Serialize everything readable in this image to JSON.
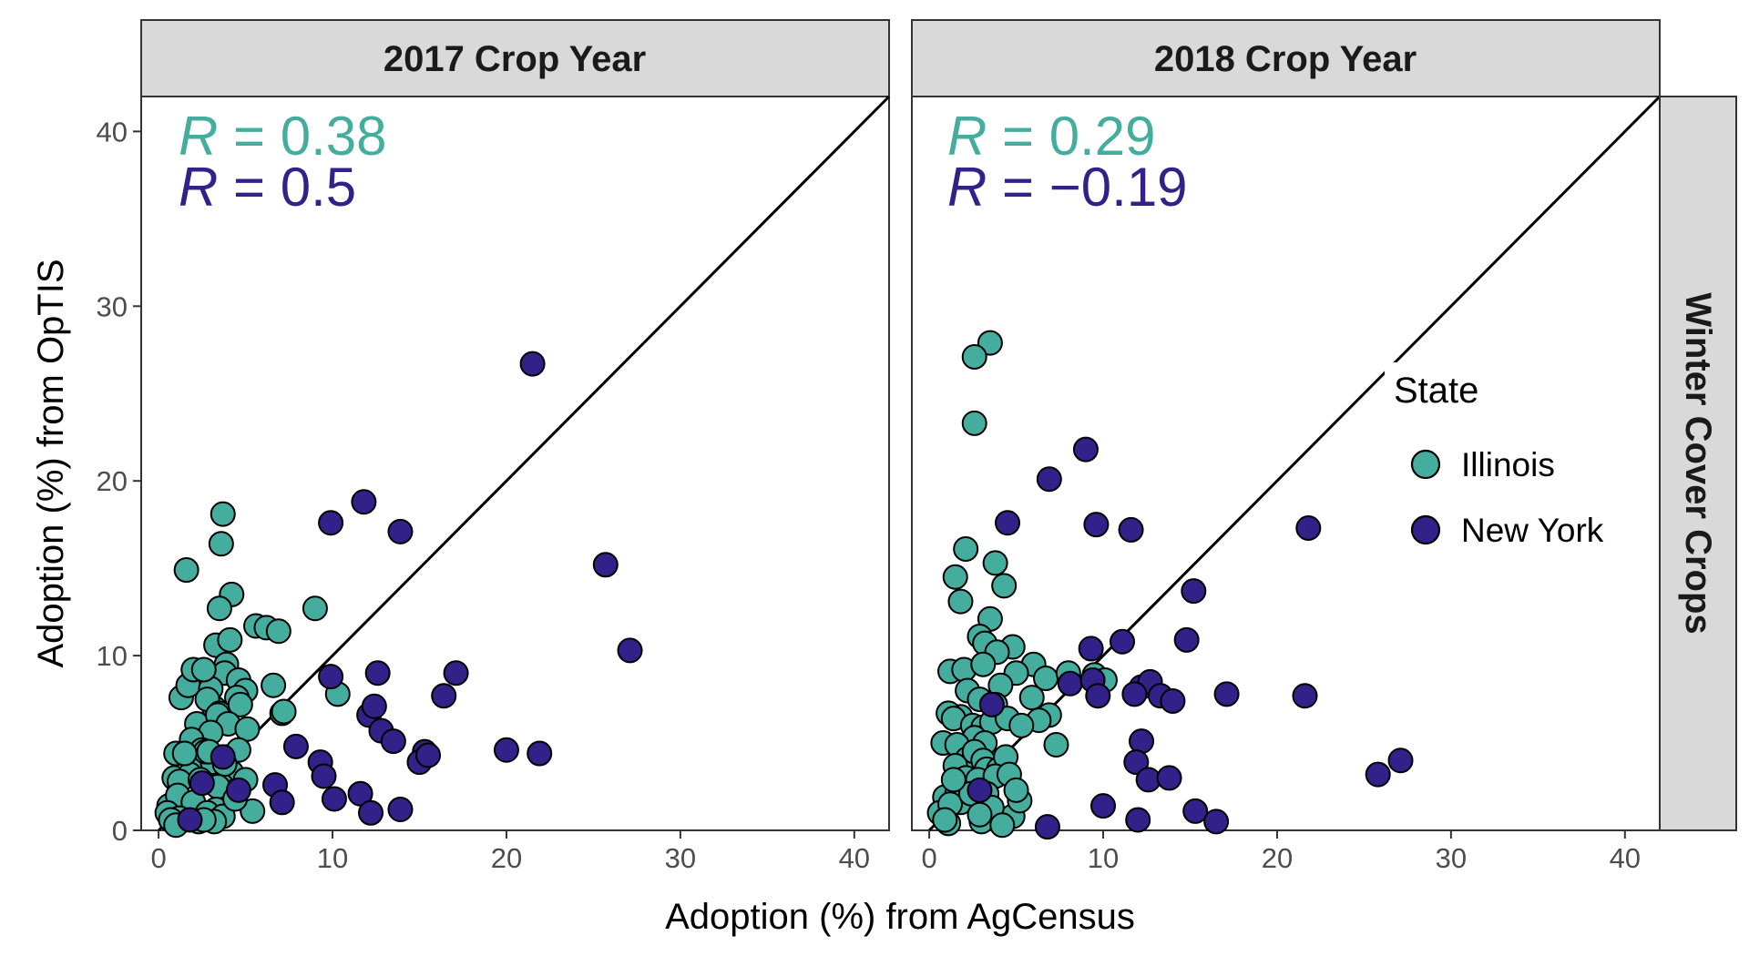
{
  "chart_data": {
    "type": "scatter",
    "xlabel": "Adoption (%) from AgCensus",
    "ylabel": "Adoption (%) from OpTIS",
    "xlim": [
      -1,
      42
    ],
    "ylim": [
      0,
      42
    ],
    "x_ticks": [
      0,
      10,
      20,
      30,
      40
    ],
    "y_ticks": [
      0,
      10,
      20,
      30,
      40
    ],
    "grid": false,
    "reference_line": "y = x",
    "row_strip": "Winter Cover Crops",
    "legend": {
      "title": "State",
      "placement": "right",
      "entries": [
        {
          "name": "Illinois",
          "color": "#45ad9d"
        },
        {
          "name": "New York",
          "color": "#33218a"
        }
      ]
    },
    "panels": [
      {
        "title": "2017 Crop Year",
        "correlations": [
          {
            "var": "R",
            "eq": " = ",
            "value": "0.38",
            "color": "#45ad9d"
          },
          {
            "var": "R",
            "eq": " = ",
            "value": "0.5",
            "color": "#33218a"
          }
        ],
        "series": [
          {
            "name": "Illinois",
            "x": [
              1.6,
              3.7,
              3.6,
              4.2,
              3.5,
              5.6,
              6.2,
              6.9,
              9.0,
              3.3,
              3.9,
              3.8,
              4.1,
              4.6,
              1.3,
              2.4,
              1.7,
              3.0,
              5.0,
              4.5,
              6.6,
              2.0,
              2.6,
              3.2,
              2.8,
              3.5,
              4.7,
              7.1,
              2.2,
              3.4,
              4.0,
              5.1,
              3.0,
              1.9,
              2.5,
              3.9,
              4.6,
              1.0,
              2.1,
              3.1,
              4.2,
              0.9,
              1.8,
              1.2,
              2.4,
              3.6,
              4.3,
              5.0,
              3.8,
              2.7,
              1.5,
              2.9,
              0.6,
              1.1,
              3.4,
              2.0,
              3.3,
              2.8,
              7.2,
              0.5,
              1.2,
              2.3,
              5.4,
              3.7,
              4.4,
              0.7,
              10.3,
              1.0,
              3.2,
              2.6
            ],
            "y": [
              14.9,
              18.1,
              16.4,
              13.5,
              12.7,
              11.7,
              11.6,
              11.4,
              12.7,
              10.6,
              9.5,
              9.0,
              10.9,
              8.6,
              7.6,
              8.7,
              8.3,
              8.1,
              8.0,
              7.6,
              8.3,
              9.2,
              9.2,
              7.0,
              7.5,
              6.7,
              7.2,
              6.7,
              6.1,
              6.6,
              6.1,
              5.8,
              5.6,
              5.2,
              4.6,
              4.2,
              4.6,
              4.4,
              3.8,
              3.9,
              3.3,
              3.0,
              3.2,
              2.8,
              2.9,
              2.6,
              2.2,
              2.9,
              3.8,
              4.5,
              4.4,
              4.5,
              1.4,
              2.0,
              2.5,
              1.6,
              1.2,
              1.0,
              6.8,
              1.0,
              0.7,
              0.5,
              1.1,
              0.8,
              1.8,
              0.6,
              7.8,
              0.3,
              0.5,
              0.6
            ]
          },
          {
            "name": "New York",
            "x": [
              21.5,
              11.8,
              9.9,
              13.9,
              25.7,
              27.1,
              17.1,
              9.9,
              12.6,
              16.4,
              12.1,
              12.4,
              12.8,
              13.5,
              7.9,
              15.3,
              15.0,
              15.5,
              20.0,
              21.9,
              9.3,
              9.5,
              6.7,
              10.1,
              11.6,
              12.2,
              13.9,
              7.1,
              4.6,
              3.7,
              2.5,
              1.8
            ],
            "y": [
              26.7,
              18.8,
              17.6,
              17.1,
              15.2,
              10.3,
              9.0,
              8.8,
              9.0,
              7.7,
              6.6,
              7.1,
              5.7,
              5.1,
              4.8,
              4.5,
              3.9,
              4.3,
              4.6,
              4.4,
              3.9,
              3.1,
              2.6,
              1.8,
              2.1,
              1.0,
              1.2,
              1.6,
              2.3,
              4.2,
              2.7,
              0.6
            ]
          }
        ]
      },
      {
        "title": "2018 Crop Year",
        "correlations": [
          {
            "var": "R",
            "eq": " = ",
            "value": "0.29",
            "color": "#45ad9d"
          },
          {
            "var": "R",
            "eq": " = ",
            "value": "−0.19",
            "color": "#33218a"
          }
        ],
        "series": [
          {
            "name": "Illinois",
            "x": [
              3.5,
              2.6,
              2.6,
              2.1,
              3.8,
              1.5,
              4.3,
              1.8,
              3.5,
              4.8,
              2.9,
              3.2,
              1.2,
              2.0,
              3.9,
              3.1,
              6.0,
              6.7,
              5.0,
              8.0,
              5.9,
              4.1,
              2.2,
              2.9,
              3.8,
              1.8,
              1.1,
              1.4,
              2.5,
              3.1,
              3.6,
              4.5,
              6.9,
              6.3,
              5.3,
              9.5,
              10.1,
              2.6,
              3.2,
              0.8,
              1.6,
              2.2,
              2.6,
              3.1,
              3.3,
              4.0,
              4.4,
              1.5,
              2.1,
              2.8,
              3.8,
              4.6,
              0.9,
              1.6,
              1.8,
              3.3,
              0.6,
              1.2,
              3.0,
              4.8,
              5.2,
              7.3,
              3.6,
              2.4,
              1.1,
              0.9,
              1.4,
              2.9,
              4.2,
              5.0
            ],
            "y": [
              27.9,
              27.1,
              23.3,
              16.1,
              15.3,
              14.5,
              14.0,
              13.1,
              12.1,
              10.5,
              11.1,
              10.7,
              9.1,
              9.2,
              10.2,
              9.5,
              9.5,
              8.7,
              9.0,
              9.0,
              7.6,
              8.3,
              8.0,
              7.5,
              7.2,
              6.5,
              6.7,
              6.4,
              6.0,
              5.9,
              6.2,
              6.4,
              6.6,
              6.3,
              6.0,
              8.9,
              8.6,
              5.3,
              5.0,
              5.0,
              4.9,
              4.1,
              4.5,
              4.0,
              3.5,
              3.5,
              4.2,
              3.7,
              3.0,
              2.9,
              3.1,
              3.2,
              1.9,
              2.1,
              1.6,
              2.1,
              1.0,
              1.5,
              0.5,
              0.8,
              1.7,
              4.9,
              1.3,
              2.1,
              0.4,
              0.6,
              2.9,
              0.9,
              0.3,
              2.3
            ]
          },
          {
            "name": "New York",
            "x": [
              9.0,
              6.9,
              4.5,
              9.6,
              11.6,
              21.8,
              9.3,
              15.2,
              14.8,
              11.1,
              17.1,
              21.6,
              8.1,
              9.4,
              12.2,
              12.7,
              13.3,
              11.8,
              14.0,
              9.7,
              12.2,
              11.9,
              12.6,
              13.8,
              25.8,
              27.1,
              15.3,
              16.5,
              10.0,
              12.0,
              6.8,
              3.6,
              2.9
            ],
            "y": [
              21.8,
              20.1,
              17.6,
              17.5,
              17.2,
              17.3,
              10.4,
              13.7,
              10.9,
              10.8,
              7.8,
              7.7,
              8.4,
              8.6,
              8.2,
              8.5,
              7.7,
              7.8,
              7.4,
              7.7,
              5.1,
              3.9,
              2.9,
              3.0,
              3.2,
              4.0,
              1.1,
              0.5,
              1.4,
              0.6,
              0.2,
              7.2,
              2.3
            ]
          }
        ]
      }
    ]
  }
}
